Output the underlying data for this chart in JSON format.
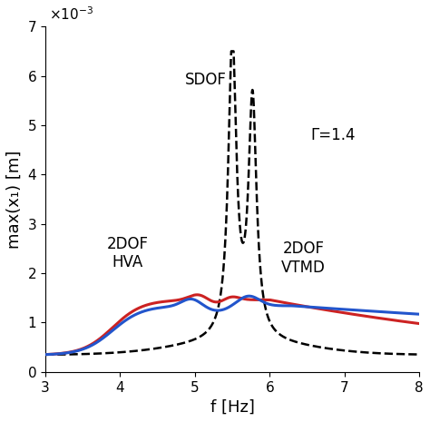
{
  "xlabel": "f [Hz]",
  "ylabel": "max(x₁) [m]",
  "xlim": [
    3,
    8
  ],
  "ylim": [
    0,
    0.007
  ],
  "gamma_label": "Γ=1.4",
  "sdof_color": "#000000",
  "hva_color": "#cc2222",
  "vtmd_color": "#2255cc",
  "background_color": "#ffffff",
  "linewidth": 1.8
}
